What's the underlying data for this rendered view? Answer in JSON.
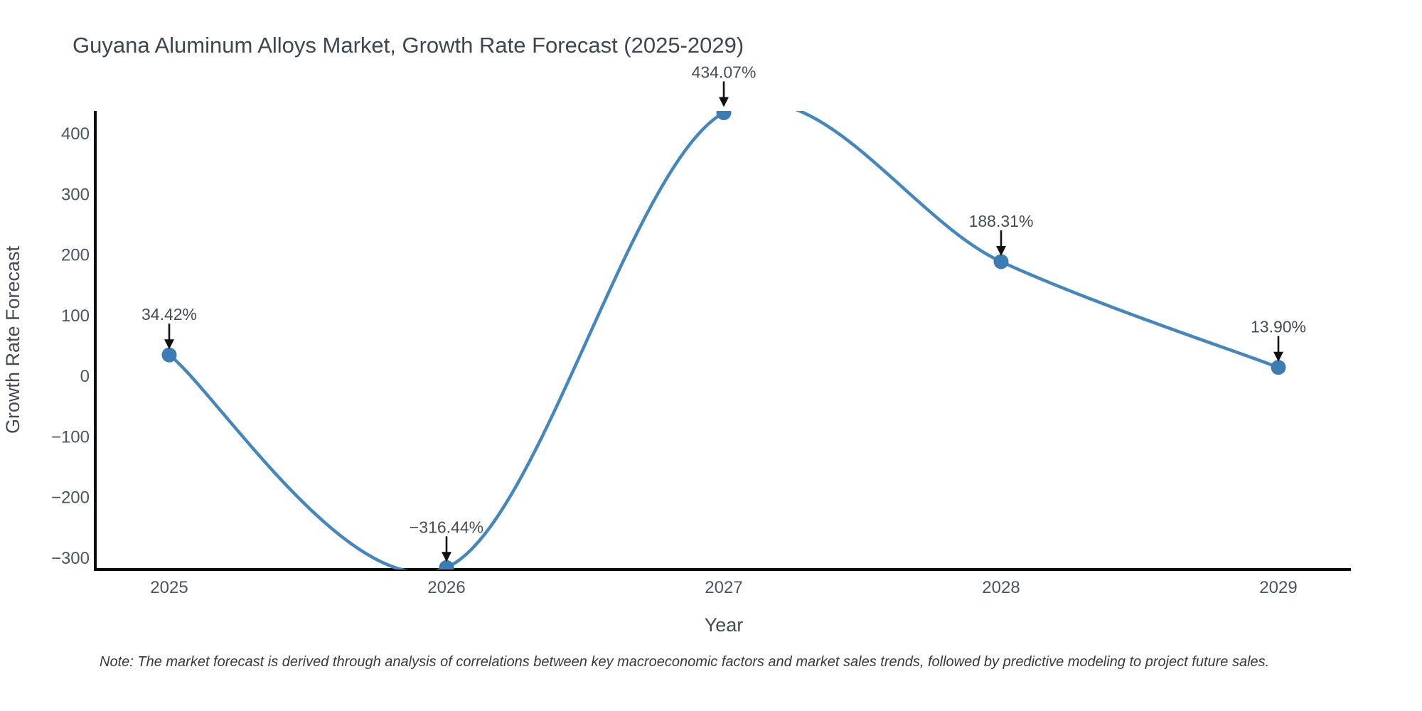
{
  "title": "Guyana Aluminum Alloys Market, Growth Rate Forecast (2025-2029)",
  "note": "Note: The market forecast is derived through analysis of correlations between key macroeconomic factors and market sales trends, followed by predictive modeling to project future sales.",
  "chart_data": {
    "type": "line",
    "line_shape": "spline",
    "title": "Guyana Aluminum Alloys Market, Growth Rate Forecast (2025-2029)",
    "xlabel": "Year",
    "ylabel": "Growth Rate Forecast",
    "x": [
      2025,
      2026,
      2027,
      2028,
      2029
    ],
    "values": [
      34.42,
      -316.44,
      434.07,
      188.31,
      13.9
    ],
    "point_labels": [
      "34.42%",
      "-316.44%",
      "434.07%",
      "188.31%",
      "13.90%"
    ],
    "yticks": [
      400,
      300,
      200,
      100,
      0,
      -100,
      -200,
      -300
    ],
    "ylim": [
      -322,
      433
    ],
    "grid": false,
    "legend": false,
    "annotation_style": "label-above-with-down-arrow",
    "colors": {
      "line": "#4387be",
      "marker": "#3c7cb4",
      "axis": "#0a0a0a",
      "arrow": "#111111",
      "tick_text": "#4a5560",
      "axis_title_text": "#444b55",
      "annotation_text": "#454c55",
      "title_text": "#3d4651",
      "note_text": "#3a3a3a",
      "background": "#ffffff"
    }
  }
}
